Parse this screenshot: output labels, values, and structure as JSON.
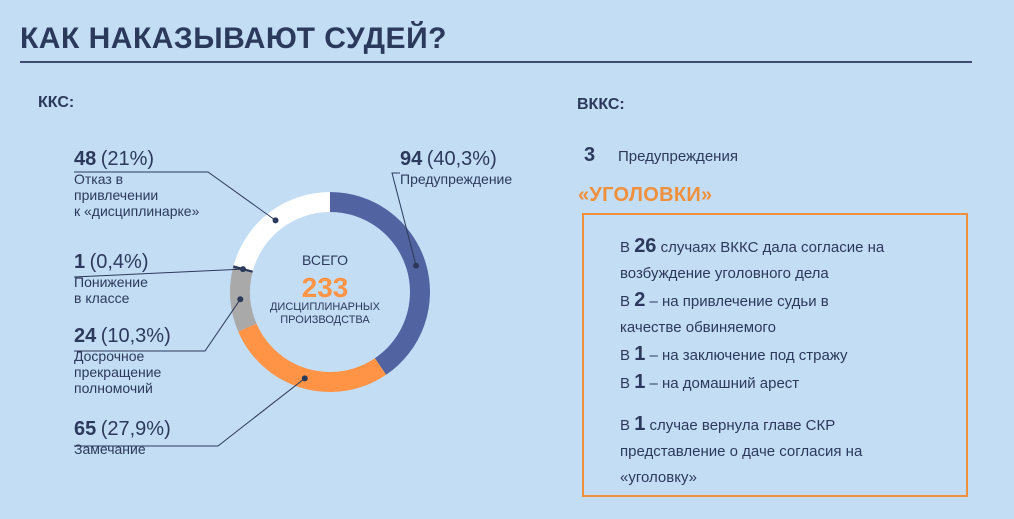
{
  "title": "КАК НАКАЗЫВАЮТ СУДЕЙ?",
  "kks_label": "ККС:",
  "vkks_label": "ВККС:",
  "chart_data": {
    "type": "pie",
    "donut": true,
    "center": {
      "top_text": "ВСЕГО",
      "total": "233",
      "bottom_text": "ДИСЦИПЛИНАРНЫХ ПРОИЗВОДСТВА"
    },
    "slices": [
      {
        "label": "Предупреждение",
        "value": 94,
        "num": "94",
        "pct": "(40,3%)",
        "color": "#5163a1"
      },
      {
        "label": "Замечание",
        "value": 65,
        "num": "65",
        "pct": "(27,9%)",
        "color": "#ff9447"
      },
      {
        "label": "Досрочное прекращение полномочий",
        "value": 24,
        "num": "24",
        "pct": "(10,3%)",
        "color": "#a9a9a9"
      },
      {
        "label": "Понижение в классе",
        "value": 1,
        "num": "1",
        "pct": "(0,4%)",
        "color": "#2b3a5a"
      },
      {
        "label": "Отказ в привлечении к «дисциплинарке»",
        "value": 48,
        "num": "48",
        "pct": "(21%)",
        "color": "#ffffff"
      }
    ]
  },
  "labels": {
    "s0": {
      "num": "94",
      "pct": "(40,3%)",
      "text": "Предупреждение"
    },
    "s1": {
      "num": "65",
      "pct": "(27,9%)",
      "text": "Замечание"
    },
    "s2": {
      "num": "24",
      "pct": "(10,3%)",
      "text": "Досрочное\nпрекращение\nполномочий"
    },
    "s3": {
      "num": "1",
      "pct": "(0,4%)",
      "text": "Понижение\nв классе"
    },
    "s4": {
      "num": "48",
      "pct": "(21%)",
      "text": "Отказ в\nпривлечении\nк «дисциплинарке»"
    }
  },
  "vkks": {
    "warnings_num": "3",
    "warnings_text": "Предупреждения"
  },
  "criminal": {
    "heading": "«УГОЛОВКИ»",
    "lines": [
      {
        "pre": "В ",
        "num": "26",
        "post": " случаях ВККС дала согласие на"
      },
      {
        "pre": "",
        "num": "",
        "post": "возбуждение уголовного дела"
      },
      {
        "pre": "В ",
        "num": "2",
        "post": " – на привлечение судьи в"
      },
      {
        "pre": "",
        "num": "",
        "post": "качестве обвиняемого"
      },
      {
        "pre": "В ",
        "num": "1",
        "post": " – на заключение под стражу"
      },
      {
        "pre": "В ",
        "num": "1",
        "post": " – на домашний арест"
      }
    ],
    "lines2": [
      {
        "pre": "В ",
        "num": "1",
        "post": " случае вернула главе СКР"
      },
      {
        "pre": "",
        "num": "",
        "post": "представление о даче согласия на"
      },
      {
        "pre": "",
        "num": "",
        "post": "«уголовку»"
      }
    ]
  }
}
